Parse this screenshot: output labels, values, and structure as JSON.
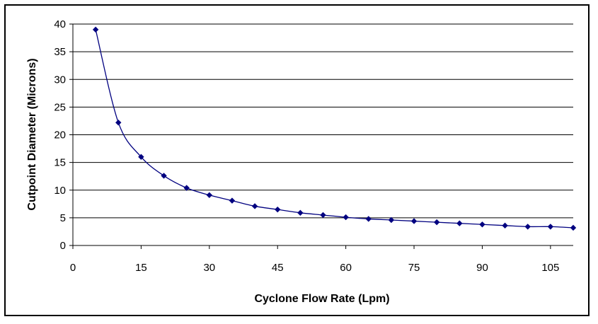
{
  "chart_data": {
    "type": "line",
    "title": "",
    "xlabel": "Cyclone Flow Rate (Lpm)",
    "ylabel": "Cutpoint Diameter (Microns)",
    "xlim": [
      0,
      110
    ],
    "ylim": [
      0,
      40
    ],
    "x_ticks": [
      "0",
      "15",
      "30",
      "45",
      "60",
      "75",
      "90",
      "105"
    ],
    "y_ticks": [
      "0",
      "5",
      "10",
      "15",
      "20",
      "25",
      "30",
      "35",
      "40"
    ],
    "grid": "horizontal",
    "marker": "diamond",
    "series_color": "#000080",
    "gridline_color": "#000000",
    "series": [
      {
        "x": [
          5,
          10,
          15,
          20,
          25,
          30,
          35,
          40,
          45,
          50,
          55,
          60,
          65,
          70,
          75,
          80,
          85,
          90,
          95,
          100,
          105,
          110
        ],
        "values": [
          39.0,
          22.2,
          16.0,
          12.6,
          10.4,
          9.1,
          8.1,
          7.1,
          6.5,
          5.9,
          5.5,
          5.1,
          4.8,
          4.6,
          4.4,
          4.2,
          4.0,
          3.8,
          3.6,
          3.4,
          3.4,
          3.2
        ]
      }
    ]
  }
}
